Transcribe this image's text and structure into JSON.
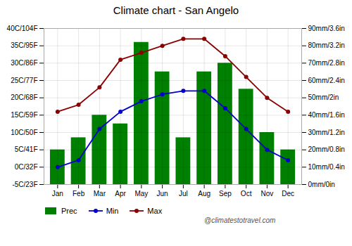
{
  "chart_data": {
    "type": "bar",
    "title": "Climate chart - San Angelo",
    "categories": [
      "Jan",
      "Feb",
      "Mar",
      "Apr",
      "May",
      "Jun",
      "Jul",
      "Aug",
      "Sep",
      "Oct",
      "Nov",
      "Dec"
    ],
    "series": [
      {
        "name": "Prec",
        "type": "bar",
        "axis": "y2",
        "color": "#008000",
        "values": [
          20,
          27,
          40,
          35,
          82,
          65,
          27,
          65,
          70,
          55,
          30,
          20
        ]
      },
      {
        "name": "Min",
        "type": "line",
        "color": "#0000CC",
        "marker": "o",
        "values": [
          0,
          2,
          11,
          16,
          19,
          21,
          22,
          22,
          17,
          11,
          5,
          2
        ]
      },
      {
        "name": "Max",
        "type": "line",
        "color": "#8B0000",
        "marker": "o",
        "values": [
          16,
          18,
          23,
          31,
          33,
          35,
          37,
          37,
          32,
          26,
          20,
          16
        ]
      }
    ],
    "ylim": [
      -5,
      40
    ],
    "yticks": [
      {
        "value": -5,
        "label": "-5C/23F"
      },
      {
        "value": 0,
        "label": "0C/32F"
      },
      {
        "value": 5,
        "label": "5C/41F"
      },
      {
        "value": 10,
        "label": "10C/50F"
      },
      {
        "value": 15,
        "label": "15C/59F"
      },
      {
        "value": 20,
        "label": "20C/68F"
      },
      {
        "value": 25,
        "label": "25C/77F"
      },
      {
        "value": 30,
        "label": "30C/86F"
      },
      {
        "value": 35,
        "label": "35C/95F"
      },
      {
        "value": 40,
        "label": "40C/104F"
      }
    ],
    "y2lim": [
      0,
      90
    ],
    "y2ticks": [
      {
        "value": 0,
        "label": "0mm/0in"
      },
      {
        "value": 10,
        "label": "10mm/0.4in"
      },
      {
        "value": 20,
        "label": "20mm/0.8in"
      },
      {
        "value": 30,
        "label": "30mm/1.2in"
      },
      {
        "value": 40,
        "label": "40mm/1.6in"
      },
      {
        "value": 50,
        "label": "50mm/2in"
      },
      {
        "value": 60,
        "label": "60mm/2.4in"
      },
      {
        "value": 70,
        "label": "70mm/2.8in"
      },
      {
        "value": 80,
        "label": "80mm/3.2in"
      },
      {
        "value": 90,
        "label": "90mm/3.6in"
      }
    ],
    "grid": true,
    "legend": "bottom",
    "annotations": [
      "@climatestotravel.com"
    ]
  }
}
